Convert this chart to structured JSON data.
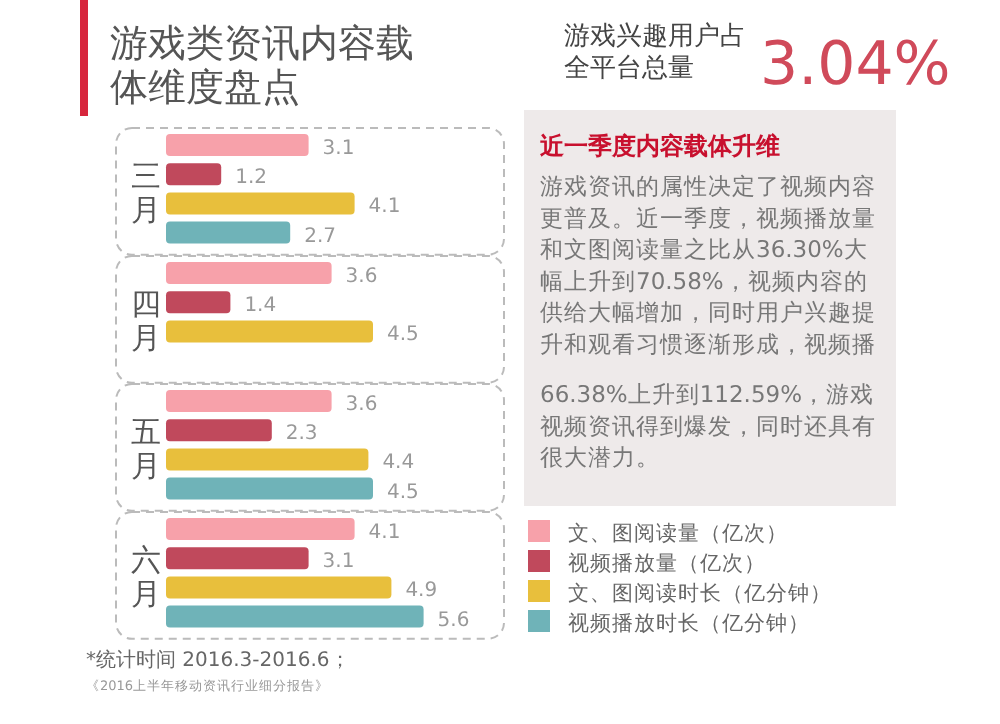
{
  "chart_data": {
    "type": "bar",
    "orientation": "horizontal",
    "title": "游戏类资讯内容载体维度盘点",
    "categories": [
      "三月",
      "四月",
      "五月",
      "六月"
    ],
    "series": [
      {
        "name": "文、图阅读量（亿次）",
        "color": "#f7a1aa",
        "values": [
          3.1,
          3.6,
          3.6,
          4.1
        ]
      },
      {
        "name": "视频播放量（亿次）",
        "color": "#c0495c",
        "values": [
          1.2,
          1.4,
          2.3,
          3.1
        ]
      },
      {
        "name": "文、图阅读时长（亿分钟）",
        "color": "#e8bf3c",
        "values": [
          4.1,
          4.5,
          4.4,
          4.9
        ]
      },
      {
        "name": "视频播放时长（亿分钟）",
        "color": "#6fb3b8",
        "values": [
          2.7,
          null,
          4.5,
          5.6
        ]
      }
    ],
    "data_labels": true,
    "legend": "right",
    "annotations": [
      "游戏兴趣用户占全平台总量",
      "3.04%",
      "近一季度内容载体升维",
      "游戏资讯的属性决定了视频内容更普及。近一季度，视频播放量和文图阅读量之比从36.30%大幅上升到70.58%，视频内容的供给大幅增加，同时用户兴趣提升和观看习惯逐渐形成，视频播",
      "66.38%上升到112.59%，游戏视频资讯得到爆发，同时还具有很大潜力。",
      "*统计时间 2016.3-2016.6；",
      "《2016上半年移动资讯行业细分报告》"
    ]
  }
}
